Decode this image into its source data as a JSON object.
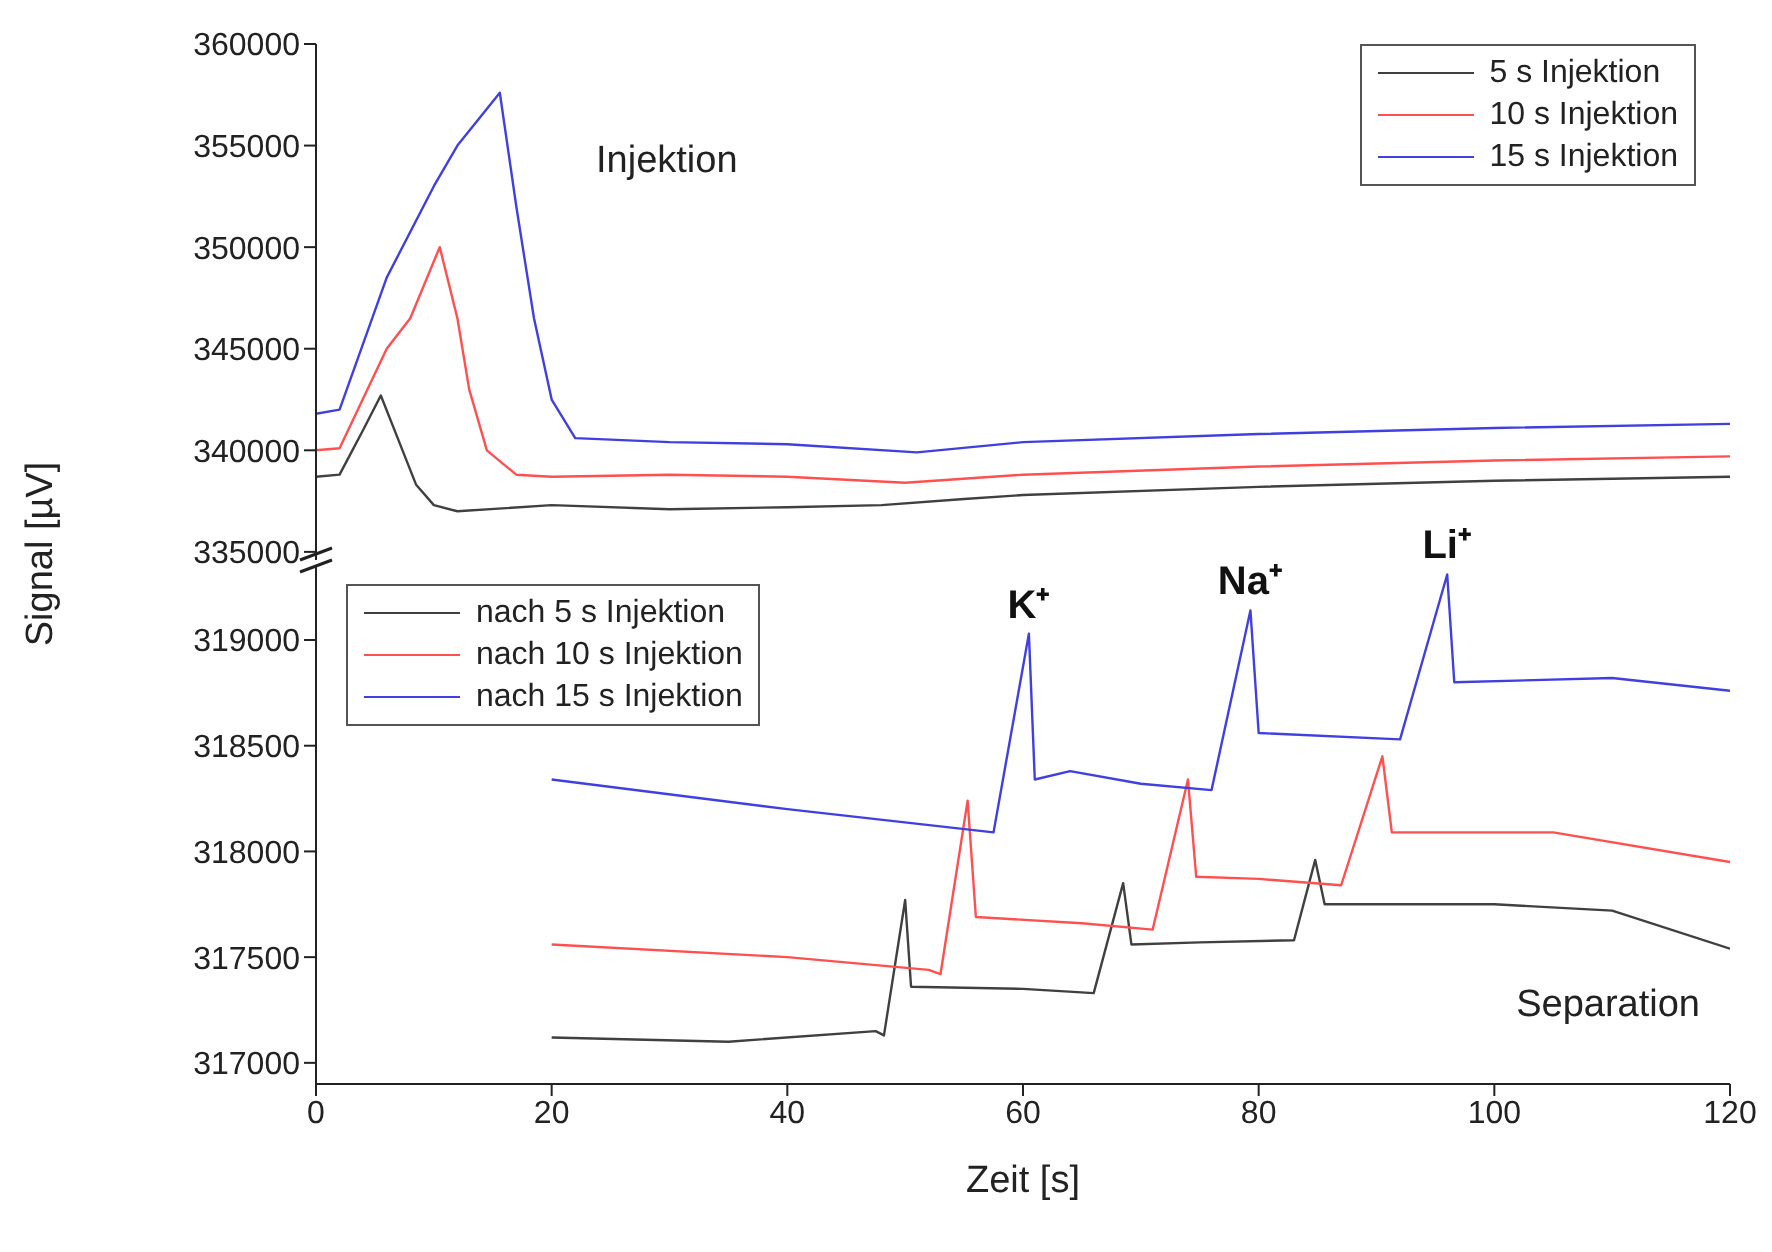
{
  "chart_data": [
    {
      "type": "line",
      "ylabel": "Signal [µV]",
      "annotations": [
        "Injektion"
      ],
      "xlim": [
        0,
        120
      ],
      "xticks": [
        0,
        20,
        40,
        60,
        80,
        100,
        120
      ],
      "ylim": [
        334600,
        360000
      ],
      "yticks": [
        335000,
        340000,
        345000,
        350000,
        355000,
        360000
      ],
      "tick_labels": "y",
      "legend": "top right",
      "grid": false,
      "series": [
        {
          "name": "5 s Injektion",
          "color": "#404040",
          "x": [
            0,
            2,
            4,
            5.5,
            7,
            8.5,
            10,
            12,
            20,
            30,
            40,
            48,
            55,
            60,
            80,
            100,
            120
          ],
          "values": [
            338700,
            338800,
            341000,
            342700,
            340500,
            338300,
            337300,
            337000,
            337300,
            337100,
            337200,
            337300,
            337600,
            337800,
            338200,
            338500,
            338700
          ]
        },
        {
          "name": "10 s Injektion",
          "color": "#ff5050",
          "x": [
            0,
            2,
            6,
            8,
            10.5,
            12,
            13,
            14.5,
            17,
            20,
            30,
            40,
            50,
            60,
            80,
            100,
            120
          ],
          "values": [
            340000,
            340100,
            345000,
            346500,
            350000,
            346500,
            343000,
            340000,
            338800,
            338700,
            338800,
            338700,
            338400,
            338800,
            339200,
            339500,
            339700
          ]
        },
        {
          "name": "15 s Injektion",
          "color": "#4040e0",
          "x": [
            0,
            2,
            6,
            10,
            12,
            15.6,
            17,
            18.5,
            20,
            22,
            30,
            40,
            51,
            60,
            80,
            100,
            120
          ],
          "values": [
            341800,
            342000,
            348500,
            353000,
            355000,
            357600,
            352000,
            346500,
            342500,
            340600,
            340400,
            340300,
            339900,
            340400,
            340800,
            341100,
            341300
          ]
        }
      ]
    },
    {
      "type": "line",
      "xlabel": "Zeit [s]",
      "annotations": [
        {
          "text": "K⁺",
          "x": 60.5,
          "y": 319030
        },
        {
          "text": "Na⁺",
          "x": 79.3,
          "y": 319140
        },
        {
          "text": "Li⁺",
          "x": 96,
          "y": 319310
        },
        "Separation"
      ],
      "xlim": [
        0,
        120
      ],
      "xticks": [
        0,
        20,
        40,
        60,
        80,
        100,
        120
      ],
      "ylim": [
        316900,
        319350
      ],
      "yticks": [
        317000,
        317500,
        318000,
        318500,
        319000
      ],
      "legend": "top left",
      "grid": false,
      "series": [
        {
          "name": "nach 5 s Injektion",
          "color": "#404040",
          "x": [
            20,
            35,
            47.5,
            48.2,
            50,
            50.5,
            60,
            66,
            68.5,
            69.2,
            75,
            83,
            84.8,
            85.6,
            100,
            110,
            120
          ],
          "values": [
            317120,
            317100,
            317150,
            317130,
            317770,
            317360,
            317350,
            317330,
            317850,
            317560,
            317570,
            317580,
            317960,
            317750,
            317750,
            317720,
            317540
          ]
        },
        {
          "name": "nach 10 s Injektion",
          "color": "#ff5050",
          "x": [
            20,
            40,
            52,
            53,
            55.3,
            56,
            65,
            71,
            74,
            74.7,
            80,
            87,
            90.5,
            91.3,
            105,
            120
          ],
          "values": [
            317560,
            317500,
            317440,
            317420,
            318240,
            317690,
            317660,
            317630,
            318340,
            317880,
            317870,
            317840,
            318450,
            318090,
            318090,
            317950
          ]
        },
        {
          "name": "nach 15 s Injektion",
          "color": "#4040e0",
          "x": [
            20,
            40,
            57.5,
            60.5,
            61,
            64,
            70,
            76,
            79.3,
            80,
            92,
            96,
            96.6,
            110,
            120
          ],
          "values": [
            318340,
            318200,
            318090,
            319030,
            318340,
            318380,
            318320,
            318290,
            319140,
            318560,
            318530,
            319310,
            318800,
            318820,
            318760
          ]
        }
      ]
    }
  ]
}
